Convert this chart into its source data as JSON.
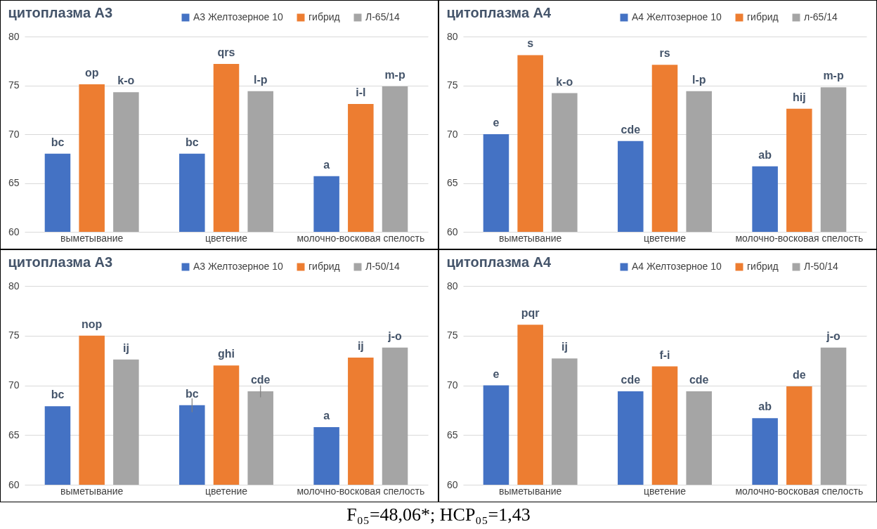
{
  "chart_data": [
    {
      "type": "bar",
      "title": "цитоплазма А3",
      "categories": [
        "выметывание",
        "цветение",
        "молочно-восковая спелость"
      ],
      "ylim": [
        60,
        80
      ],
      "yticks": [
        60,
        65,
        70,
        75,
        80
      ],
      "grid": "y",
      "legend": "top right",
      "series": [
        {
          "name": "А3 Желтозерное 10",
          "color": "#4472c4",
          "values": [
            68.0,
            68.0,
            65.7
          ],
          "value_labels": [
            "bc",
            "bc",
            "a"
          ]
        },
        {
          "name": "гибрид",
          "color": "#ed7d31",
          "values": [
            75.1,
            77.2,
            73.1
          ],
          "value_labels": [
            "op",
            "qrs",
            "i-l"
          ]
        },
        {
          "name": "Л-65/14",
          "color": "#a5a5a5",
          "values": [
            74.3,
            74.4,
            74.9
          ],
          "value_labels": [
            "k-o",
            "l-p",
            "m-p"
          ]
        }
      ]
    },
    {
      "type": "bar",
      "title": "цитоплазма А4",
      "categories": [
        "выметывание",
        "цветение",
        "молочно-восковая спелость"
      ],
      "ylim": [
        60,
        80
      ],
      "yticks": [
        60,
        65,
        70,
        75,
        80
      ],
      "grid": "y",
      "legend": "top right",
      "series": [
        {
          "name": "А4 Желтозерное 10",
          "color": "#4472c4",
          "values": [
            70.0,
            69.3,
            66.7
          ],
          "value_labels": [
            "e",
            "cde",
            "ab"
          ]
        },
        {
          "name": "гибрид",
          "color": "#ed7d31",
          "values": [
            78.1,
            77.1,
            72.6
          ],
          "value_labels": [
            "s",
            "rs",
            "hij"
          ]
        },
        {
          "name": "л-65/14",
          "color": "#a5a5a5",
          "values": [
            74.2,
            74.4,
            74.8
          ],
          "value_labels": [
            "k-o",
            "l-p",
            "m-p"
          ]
        }
      ]
    },
    {
      "type": "bar",
      "title": "цитоплазма А3",
      "categories": [
        "выметывание",
        "цветение",
        "молочно-восковая спелость"
      ],
      "ylim": [
        60,
        80
      ],
      "yticks": [
        60,
        65,
        70,
        75,
        80
      ],
      "grid": "y",
      "legend": "top right",
      "series": [
        {
          "name": "А3 Желтозерное 10",
          "color": "#4472c4",
          "values": [
            67.9,
            68.0,
            65.8
          ],
          "value_labels": [
            "bc",
            "bc",
            "a"
          ],
          "errors": [
            null,
            0.7,
            null
          ]
        },
        {
          "name": "гибрид",
          "color": "#ed7d31",
          "values": [
            75.0,
            72.0,
            72.8
          ],
          "value_labels": [
            "nop",
            "ghi",
            "ij"
          ]
        },
        {
          "name": "Л-50/14",
          "color": "#a5a5a5",
          "values": [
            72.6,
            69.4,
            73.8
          ],
          "value_labels": [
            "ij",
            "cde",
            "j-o"
          ],
          "errors": [
            null,
            0.6,
            null
          ]
        }
      ]
    },
    {
      "type": "bar",
      "title": "цитоплазма А4",
      "categories": [
        "выметывание",
        "цветение",
        "молочно-восковая спелость"
      ],
      "ylim": [
        60,
        80
      ],
      "yticks": [
        60,
        65,
        70,
        75,
        80
      ],
      "grid": "y",
      "legend": "top right",
      "annotations": [
        "F₀₅=48,06*; НСР₀₅=1,43"
      ],
      "series": [
        {
          "name": "А4 Желтозерное 10",
          "color": "#4472c4",
          "values": [
            70.0,
            69.4,
            66.7
          ],
          "value_labels": [
            "e",
            "cde",
            "ab"
          ]
        },
        {
          "name": "гибрид",
          "color": "#ed7d31",
          "values": [
            76.1,
            71.9,
            69.9
          ],
          "value_labels": [
            "pqr",
            "f-i",
            "de"
          ]
        },
        {
          "name": "Л-50/14",
          "color": "#a5a5a5",
          "values": [
            72.7,
            69.4,
            73.8
          ],
          "value_labels": [
            "ij",
            "cde",
            "j-o"
          ]
        }
      ]
    }
  ]
}
